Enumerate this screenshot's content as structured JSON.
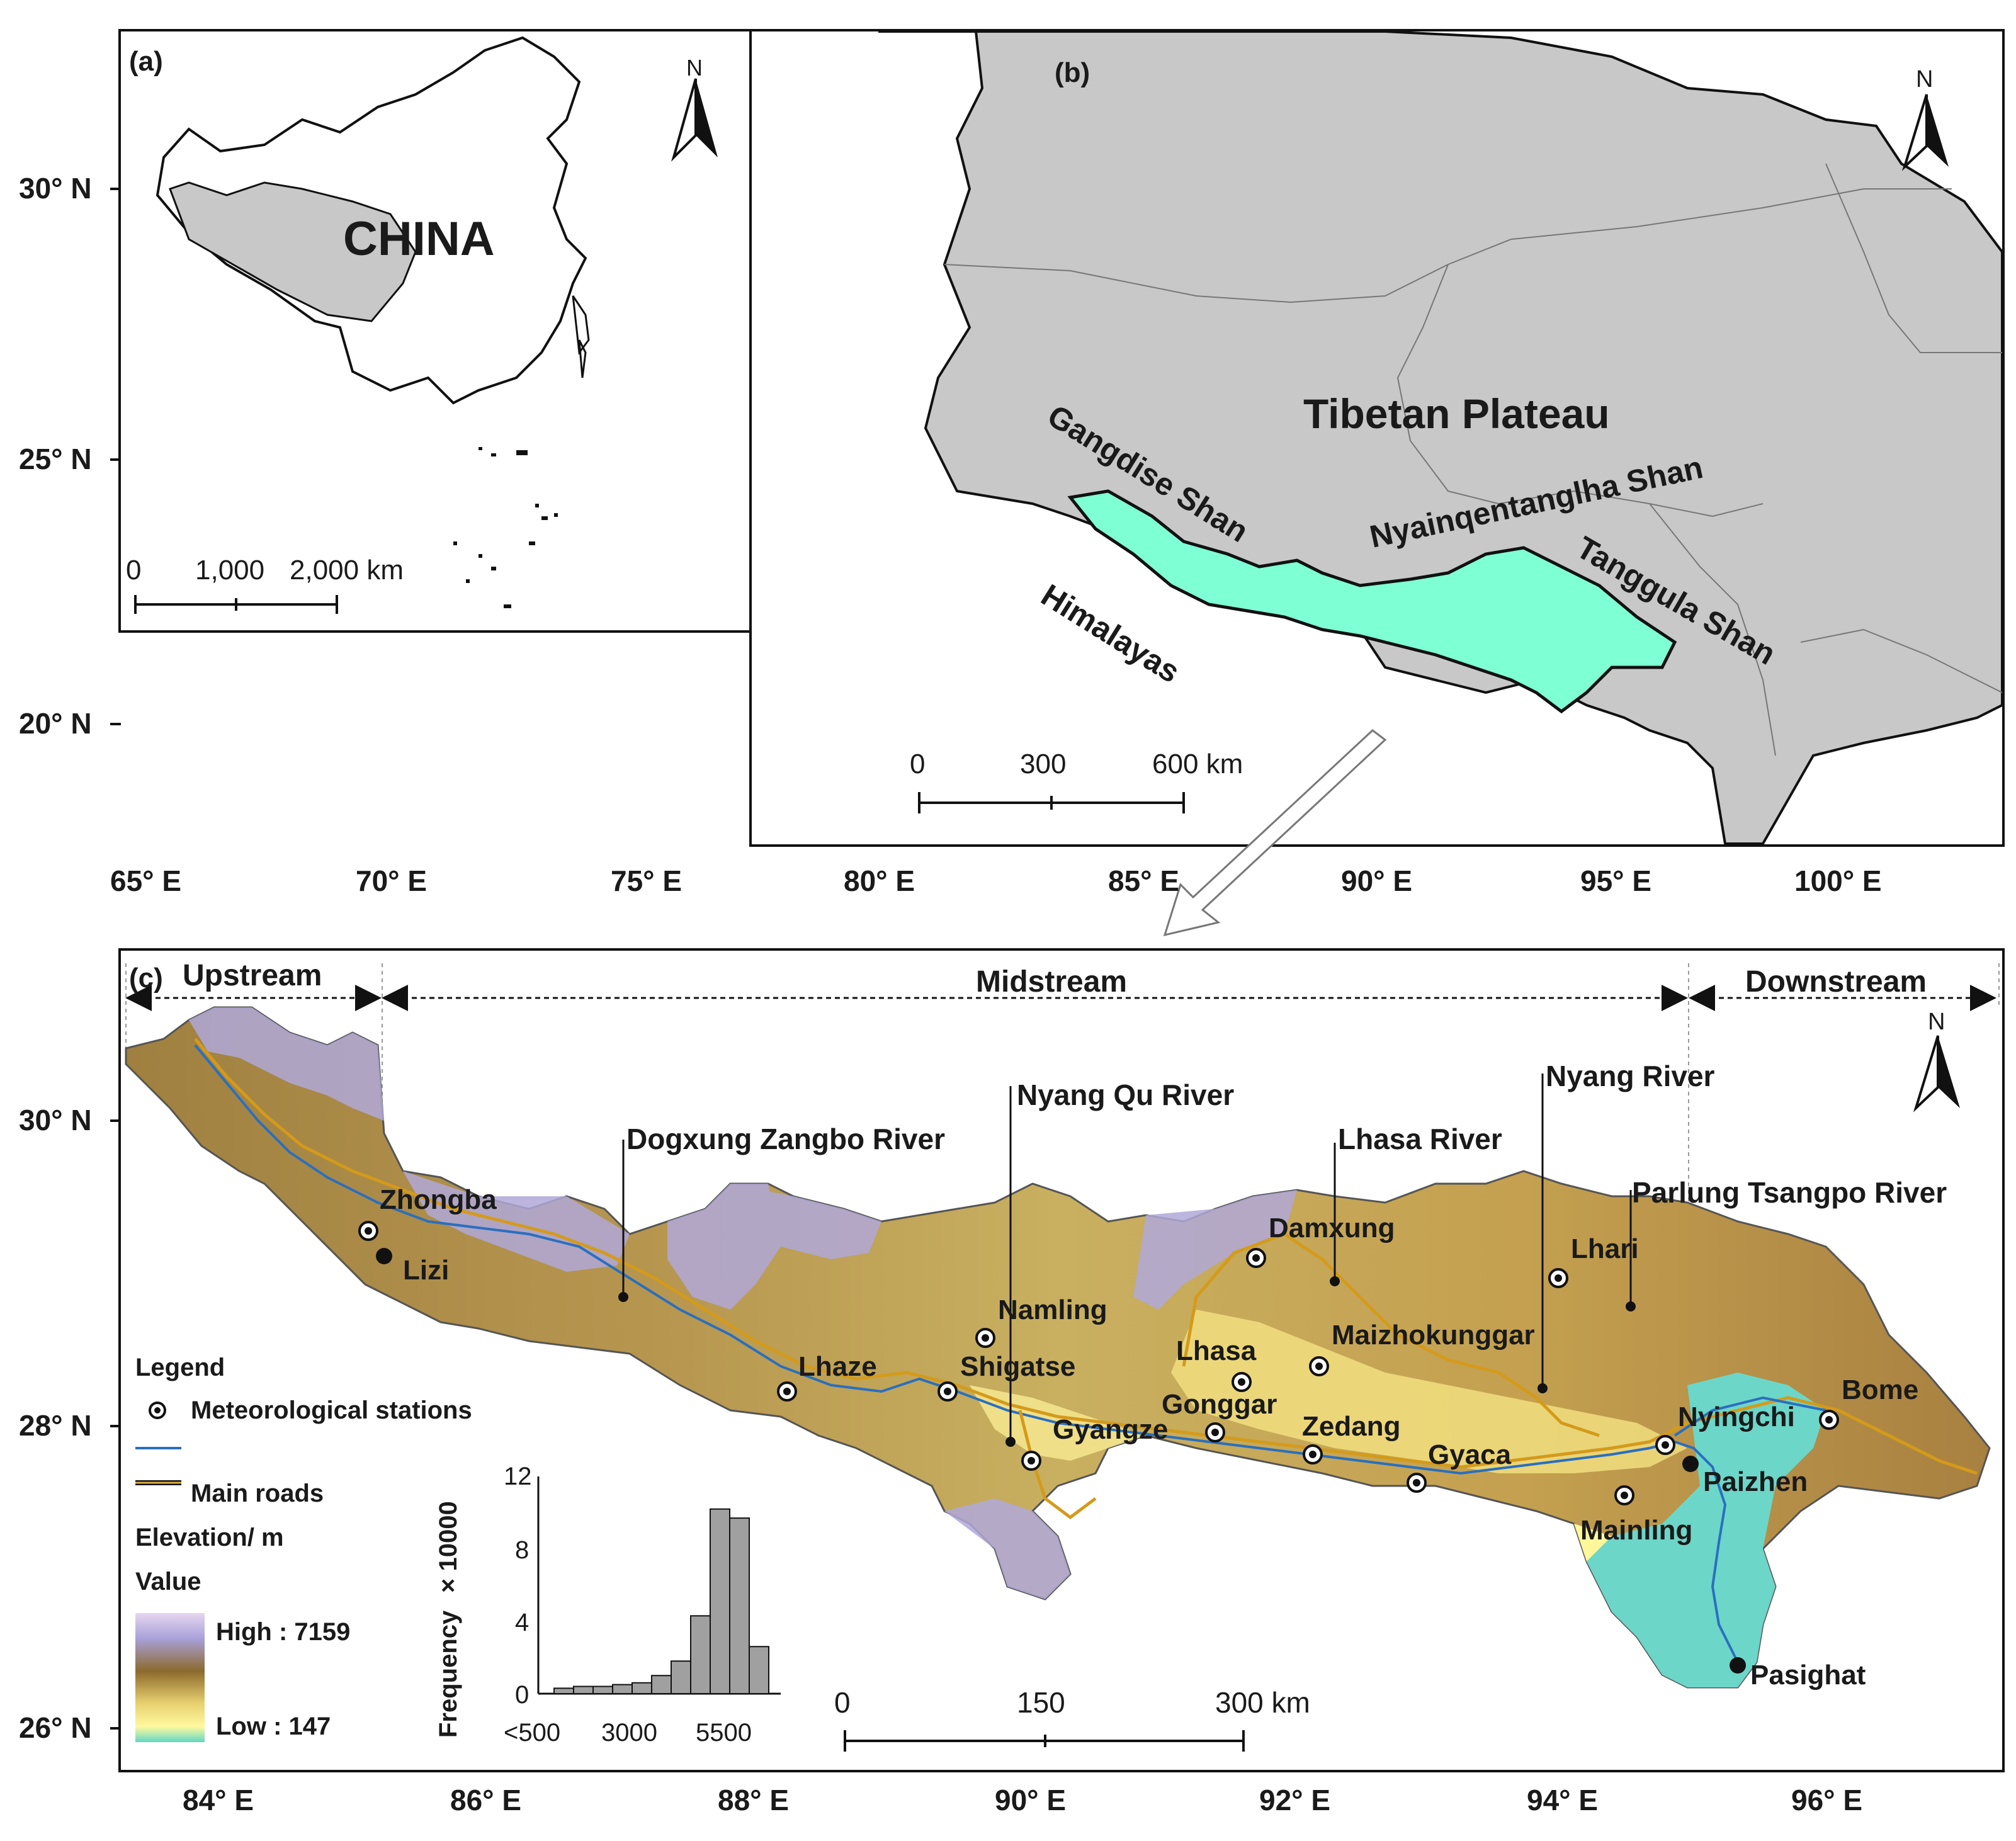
{
  "panels": {
    "a": {
      "tag": "(a)",
      "country": "CHINA",
      "north": "N",
      "scale_labels": [
        "0",
        "1,000",
        "2,000 km"
      ]
    },
    "b": {
      "tag": "(b)",
      "north": "N",
      "region": "Tibetan Plateau",
      "ranges": [
        "Gangdise Shan",
        "Nyainqentanglha Shan",
        "Tanggula Shan",
        "Himalayas"
      ],
      "scale_labels": [
        "0",
        "300",
        "600 km"
      ]
    },
    "c": {
      "tag": "(c)",
      "north": "N",
      "zones": [
        "Upstream",
        "Midstream",
        "Downstream"
      ],
      "rivers": [
        "Dogxung Zangbo River",
        "Nyang Qu River",
        "Lhasa River",
        "Nyang River",
        "Parlung Tsangpo River"
      ],
      "stations": [
        "Zhongba",
        "Lhaze",
        "Shigatse",
        "Namling",
        "Gyangze",
        "Lhasa",
        "Gonggar",
        "Damxung",
        "Maizhokunggar",
        "Zedang",
        "Gyaca",
        "Lhari",
        "Nyingchi",
        "Mainling",
        "Bome"
      ],
      "towns": [
        "Lizi",
        "Paizhen",
        "Pasighat"
      ],
      "scale_labels": [
        "0",
        "150",
        "300 km"
      ]
    }
  },
  "axes_top": {
    "lat_labels": [
      "30° N",
      "25° N",
      "20° N"
    ],
    "lon_labels": [
      "65° E",
      "70° E",
      "75° E",
      "80° E",
      "85° E",
      "90° E",
      "95° E",
      "100° E"
    ]
  },
  "axes_bottom": {
    "lat_labels": [
      "30° N",
      "28° N",
      "26° N"
    ],
    "lon_labels": [
      "84° E",
      "86° E",
      "88° E",
      "90° E",
      "92° E",
      "94° E",
      "96° E"
    ]
  },
  "legend": {
    "title": "Legend",
    "stations": "Meteorological stations",
    "roads": "Main roads",
    "elevation": "Elevation/ m",
    "value": "Value",
    "high": "High : 7159",
    "low": "Low : 147"
  },
  "colors": {
    "basin": "#7fffd4",
    "plateau": "#c8c8c8",
    "elev_high": "#b6aee0",
    "elev_mid": "#8c6a2c",
    "elev_low": "#fff79a",
    "elev_min": "#6fd6c8",
    "road": "#d49a1a",
    "river": "#2a6fbf"
  },
  "histogram": {
    "ylabel": "Frequency",
    "ymult": "× 10000",
    "yticks": [
      "0",
      "4",
      "8",
      "12"
    ],
    "xticks": [
      "<500",
      "3000",
      "5500"
    ],
    "values": [
      0.3,
      0.4,
      0.4,
      0.5,
      0.6,
      1.0,
      1.8,
      4.3,
      10.2,
      9.7,
      2.6
    ]
  }
}
